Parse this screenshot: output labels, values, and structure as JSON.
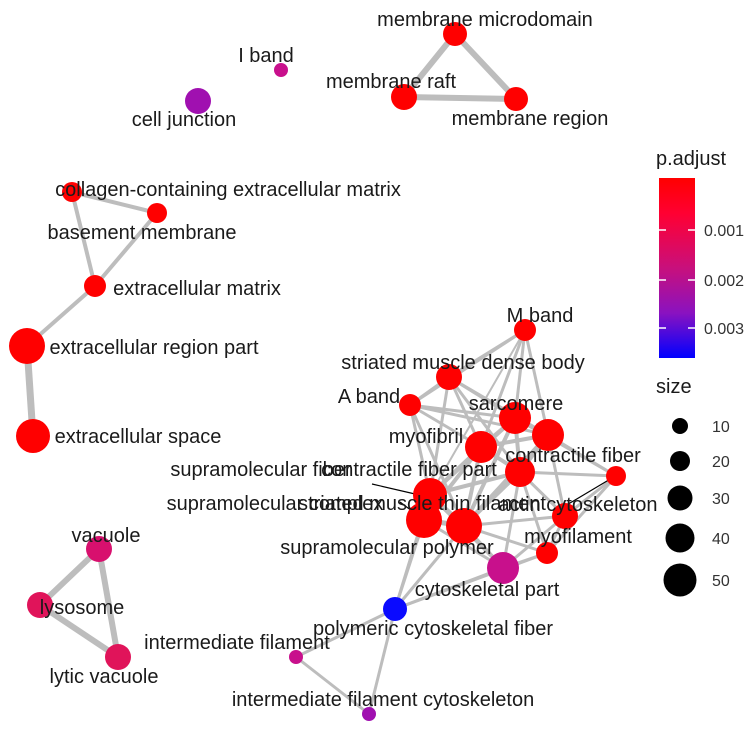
{
  "legend": {
    "color_title": "p.adjust",
    "color_ticks": [
      "0.001",
      "0.002",
      "0.003"
    ],
    "color_gradient": [
      "#ff0000",
      "#ff0033",
      "#c8107c",
      "#8a12c0",
      "#0000ff"
    ],
    "size_title": "size",
    "size_ticks": [
      "10",
      "20",
      "30",
      "40",
      "50"
    ]
  },
  "colors": {
    "edge": "#bdbdbd",
    "red": "#ff0000",
    "pink": "#e0145a",
    "magenta": "#d8107c",
    "dark_magenta": "#c8108c",
    "purple": "#a010b0",
    "blue": "#0a0aff"
  },
  "nodes": [
    {
      "id": "membrane-microdomain",
      "label": "membrane microdomain",
      "color": "#ff0000"
    },
    {
      "id": "membrane-raft",
      "label": "membrane raft",
      "color": "#ff0000"
    },
    {
      "id": "membrane-region",
      "label": "membrane region",
      "color": "#ff0000"
    },
    {
      "id": "i-band",
      "label": "I band",
      "color": "#c8108c"
    },
    {
      "id": "cell-junction",
      "label": "cell junction",
      "color": "#a010b0"
    },
    {
      "id": "collagen-ecm",
      "label": "collagen-containing extracellular matrix",
      "color": "#ff0000"
    },
    {
      "id": "basement-membrane",
      "label": "basement membrane",
      "color": "#ff0000"
    },
    {
      "id": "extracellular-matrix",
      "label": "extracellular matrix",
      "color": "#ff0000"
    },
    {
      "id": "extracellular-region-part",
      "label": "extracellular region part",
      "color": "#ff0000"
    },
    {
      "id": "extracellular-space",
      "label": "extracellular space",
      "color": "#ff0000"
    },
    {
      "id": "m-band",
      "label": "M band",
      "color": "#ff0000"
    },
    {
      "id": "striated-muscle-dense-body",
      "label": "striated muscle dense body",
      "color": "#ff0000"
    },
    {
      "id": "a-band",
      "label": "A band",
      "color": "#ff0000"
    },
    {
      "id": "sarcomere",
      "label": "sarcomere",
      "color": "#ff0000"
    },
    {
      "id": "myofibril",
      "label": "myofibril",
      "color": "#ff0000"
    },
    {
      "id": "contractile-fiber",
      "label": "contractile fiber",
      "color": "#ff0000"
    },
    {
      "id": "supramolecular-fiber",
      "label": "supramolecular fiber",
      "color": "#ff0000"
    },
    {
      "id": "contractile-fiber-part",
      "label": "contractile fiber part",
      "color": "#ff0000"
    },
    {
      "id": "supramolecular-complex",
      "label": "supramolecular complex",
      "color": "#ff0000"
    },
    {
      "id": "striated-muscle-thin-filament",
      "label": "striated muscle thin filament",
      "color": "#ff0000"
    },
    {
      "id": "actin-cytoskeleton",
      "label": "actin cytoskeleton",
      "color": "#ff0000"
    },
    {
      "id": "myofilament",
      "label": "myofilament",
      "color": "#ff0000"
    },
    {
      "id": "supramolecular-polymer",
      "label": "supramolecular polymer",
      "color": "#ff0000"
    },
    {
      "id": "cytoskeletal-part",
      "label": "cytoskeletal part",
      "color": "#c8108c"
    },
    {
      "id": "polymeric-cytoskeletal-fiber",
      "label": "polymeric cytoskeletal fiber",
      "color": "#0a0aff"
    },
    {
      "id": "intermediate-filament",
      "label": "intermediate filament",
      "color": "#c8108c"
    },
    {
      "id": "intermediate-filament-cytoskeleton",
      "label": "intermediate filament cytoskeleton",
      "color": "#a010b0"
    },
    {
      "id": "vacuole",
      "label": "vacuole",
      "color": "#d8106e"
    },
    {
      "id": "lysosome",
      "label": "lysosome",
      "color": "#e0145a"
    },
    {
      "id": "lytic-vacuole",
      "label": "lytic vacuole",
      "color": "#e0145a"
    }
  ]
}
